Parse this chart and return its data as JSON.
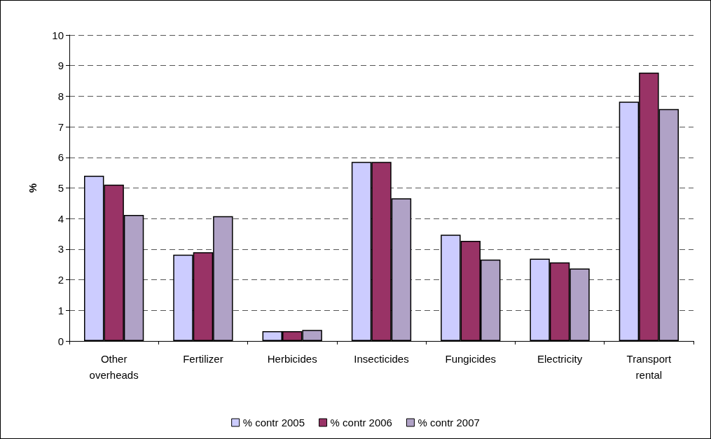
{
  "chart_data": {
    "type": "bar",
    "categories": [
      "Other overheads",
      "Fertilizer",
      "Herbicides",
      "Insecticides",
      "Fungicides",
      "Electricity",
      "Transport rental"
    ],
    "series": [
      {
        "name": "% contr 2005",
        "color": "#ccccff",
        "values": [
          5.4,
          2.82,
          0.32,
          5.85,
          3.47,
          2.69,
          7.82
        ]
      },
      {
        "name": "% contr 2006",
        "color": "#993366",
        "values": [
          5.11,
          2.9,
          0.32,
          5.85,
          3.27,
          2.57,
          8.77
        ]
      },
      {
        "name": "% contr 2007",
        "color": "#b0a2c6",
        "values": [
          4.12,
          4.08,
          0.36,
          4.66,
          2.66,
          2.37,
          7.58
        ]
      }
    ],
    "ylabel": "%",
    "ylim": [
      0,
      10
    ],
    "yticks": [
      0,
      1,
      2,
      3,
      4,
      5,
      6,
      7,
      8,
      9,
      10
    ],
    "grid": "y",
    "legend": "bottom"
  }
}
